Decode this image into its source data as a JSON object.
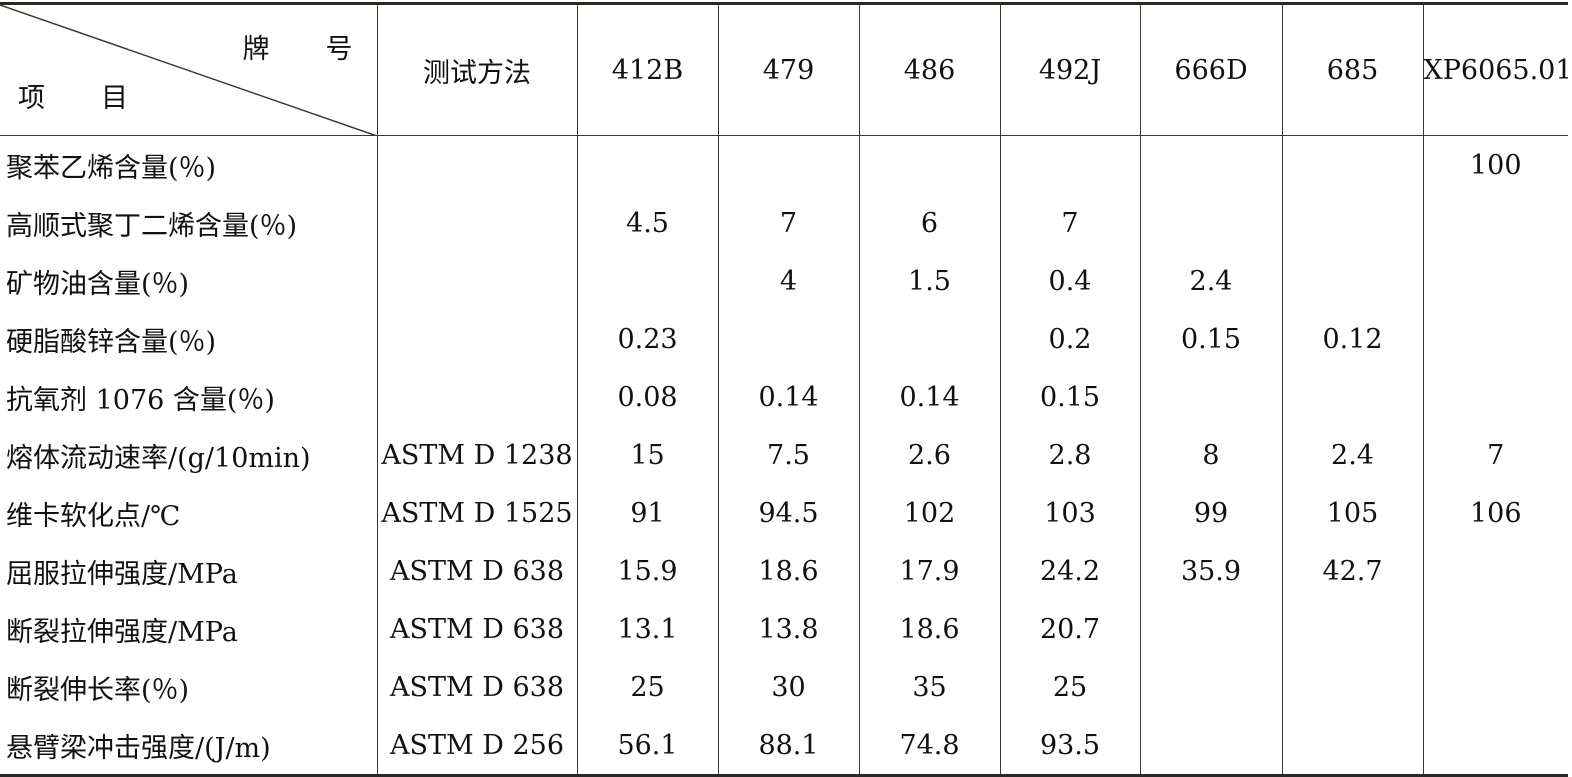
{
  "header": {
    "corner_top": "牌号",
    "corner_bottom": "项目",
    "method": "测试方法",
    "grades": [
      "412B",
      "479",
      "486",
      "492J",
      "666D",
      "685",
      "XP6065.01"
    ]
  },
  "rows": [
    {
      "item": "聚苯乙烯含量(％)",
      "method": "",
      "values": [
        "",
        "",
        "",
        "",
        "",
        "",
        "100"
      ]
    },
    {
      "item": "高顺式聚丁二烯含量(％)",
      "method": "",
      "values": [
        "4.5",
        "7",
        "6",
        "7",
        "",
        "",
        ""
      ]
    },
    {
      "item": "矿物油含量(％)",
      "method": "",
      "values": [
        "",
        "4",
        "1.5",
        "0.4",
        "2.4",
        "",
        ""
      ]
    },
    {
      "item": "硬脂酸锌含量(％)",
      "method": "",
      "values": [
        "0.23",
        "",
        "",
        "0.2",
        "0.15",
        "0.12",
        ""
      ]
    },
    {
      "item": "抗氧剂 1076 含量(％)",
      "method": "",
      "values": [
        "0.08",
        "0.14",
        "0.14",
        "0.15",
        "",
        "",
        ""
      ]
    },
    {
      "item": "熔体流动速率/(g/10min)",
      "method": "ASTM D 1238",
      "values": [
        "15",
        "7.5",
        "2.6",
        "2.8",
        "8",
        "2.4",
        "7"
      ]
    },
    {
      "item": "维卡软化点/℃",
      "method": "ASTM D 1525",
      "values": [
        "91",
        "94.5",
        "102",
        "103",
        "99",
        "105",
        "106"
      ]
    },
    {
      "item": "屈服拉伸强度/MPa",
      "method": "ASTM D 638",
      "values": [
        "15.9",
        "18.6",
        "17.9",
        "24.2",
        "35.9",
        "42.7",
        ""
      ]
    },
    {
      "item": "断裂拉伸强度/MPa",
      "method": "ASTM D 638",
      "values": [
        "13.1",
        "13.8",
        "18.6",
        "20.7",
        "",
        "",
        ""
      ]
    },
    {
      "item": "断裂伸长率(％)",
      "method": "ASTM D 638",
      "values": [
        "25",
        "30",
        "35",
        "25",
        "",
        "",
        ""
      ]
    },
    {
      "item": "悬臂梁冲击强度/(J/m)",
      "method": "ASTM D 256",
      "values": [
        "56.1",
        "88.1",
        "74.8",
        "93.5",
        "",
        "",
        ""
      ]
    }
  ]
}
